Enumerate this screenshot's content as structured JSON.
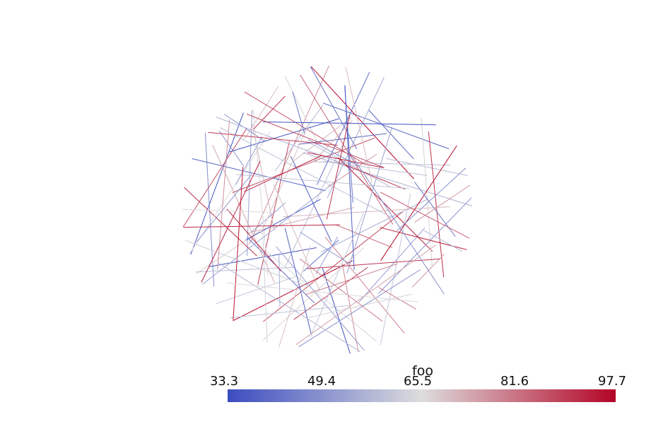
{
  "scalar_bar": {
    "title": "foo",
    "tick_labels": [
      "33.3",
      "49.4",
      "65.5",
      "81.6",
      "97.7"
    ],
    "range": [
      33.3,
      97.7
    ],
    "colormap": {
      "low": "#3b4cc0",
      "mid": "#dddddd",
      "high": "#b40426"
    }
  }
}
